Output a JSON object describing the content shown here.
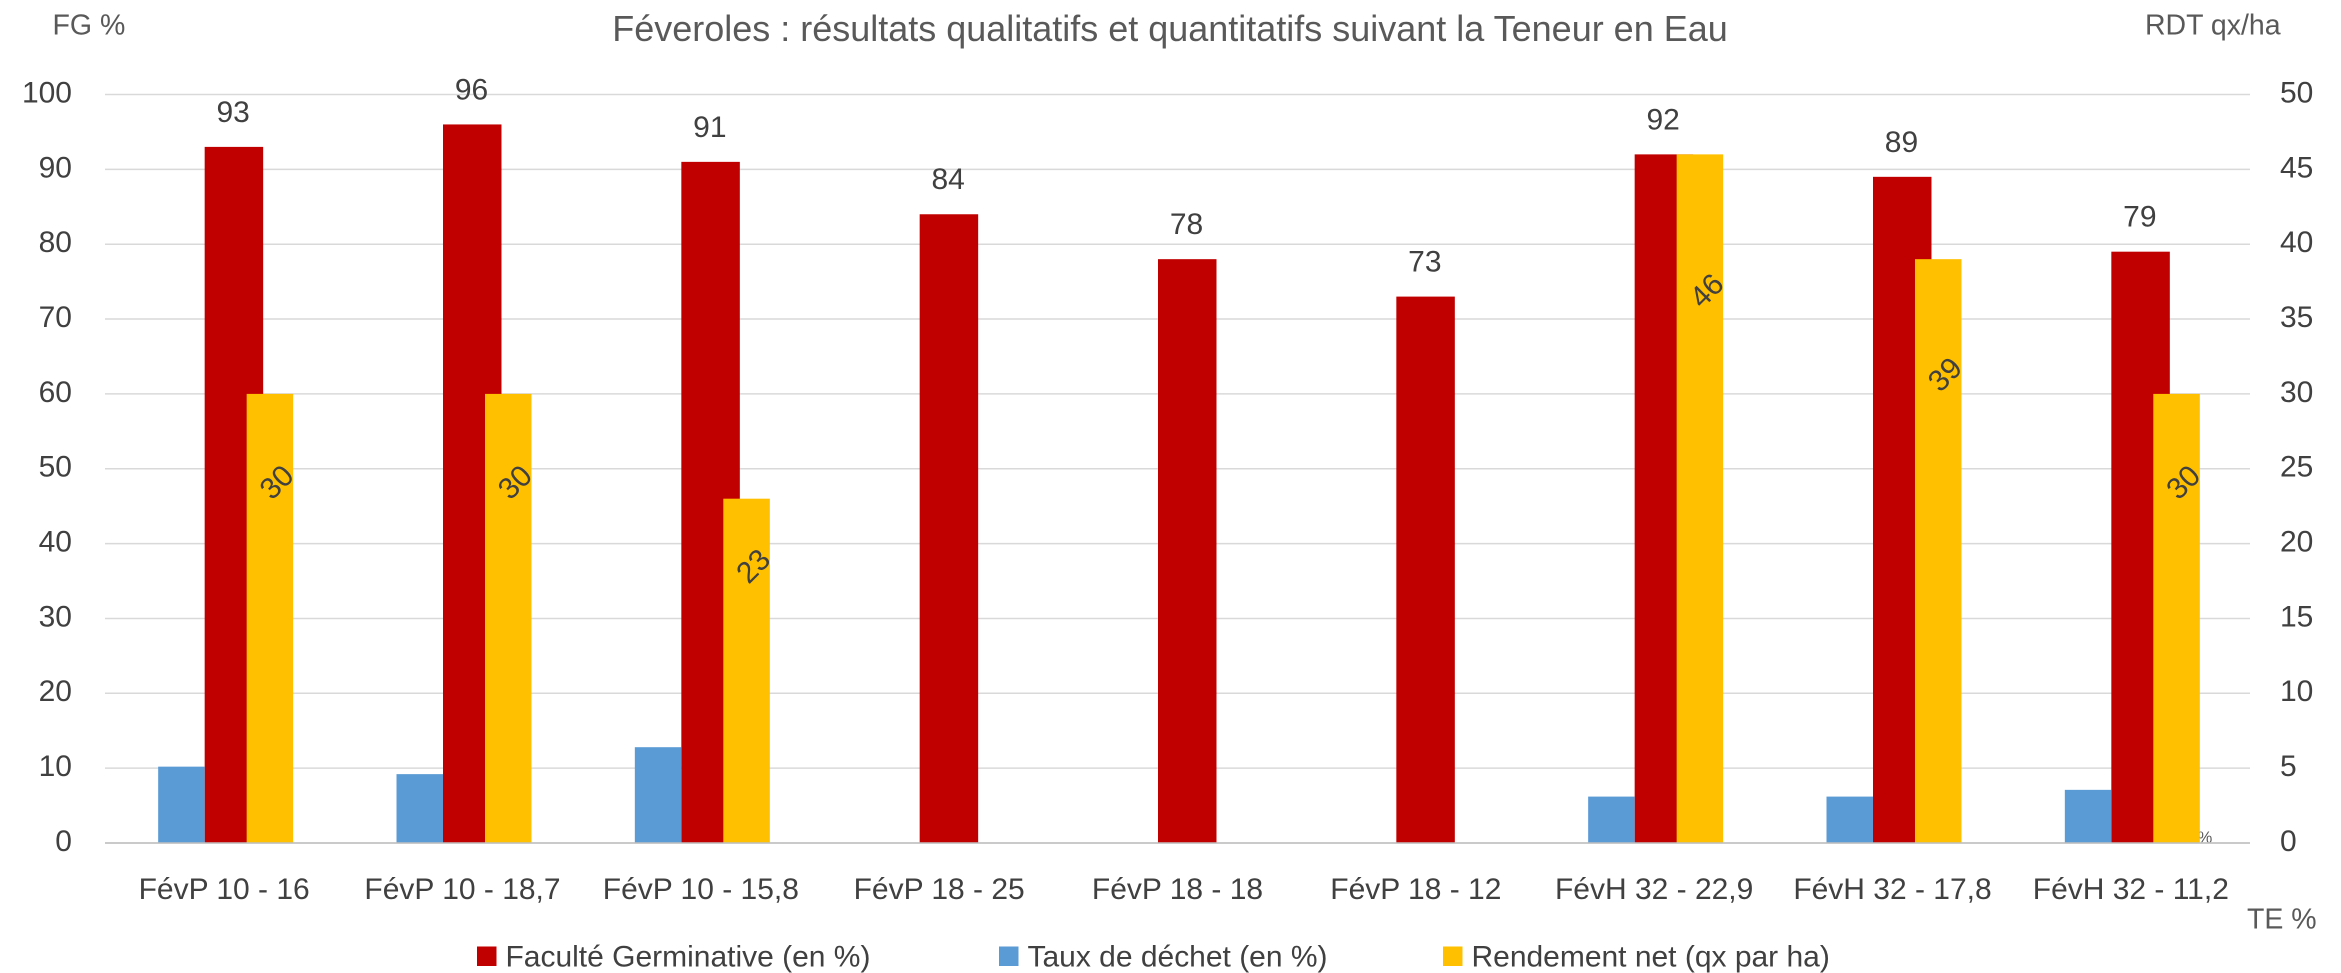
{
  "chart_data": {
    "type": "bar",
    "title": "Féveroles : résultats qualitatifs et quantitatifs suivant la Teneur en Eau",
    "y_label": "FG %",
    "y2_label": "RDT qx/ha",
    "x_label": "TE %",
    "annotation": "TE %",
    "categories": [
      "FévP 10 - 16",
      "FévP 10 - 18,7",
      "FévP 10 - 15,8",
      "FévP 18 - 25",
      "FévP 18 - 18",
      "FévP 18 - 12",
      "FévH 32 - 22,9",
      "FévH 32 - 17,8",
      "FévH 32 - 11,2"
    ],
    "series": [
      {
        "name": "Faculté Germinative (en %)",
        "color": "#c00000",
        "values": [
          93,
          96,
          91,
          84,
          78,
          73,
          92,
          89,
          79
        ]
      },
      {
        "name": "Taux de déchet (en %)",
        "color": "#5b9bd5",
        "values": [
          10.2,
          9.2,
          12.8,
          null,
          null,
          null,
          6.2,
          6.2,
          7.1
        ]
      },
      {
        "name": "Rendement net (qx par ha)",
        "color": "#ffc000",
        "axis": "y2",
        "values": [
          30,
          30,
          23,
          null,
          null,
          null,
          46,
          39,
          30
        ]
      }
    ],
    "ylim": [
      0,
      100
    ],
    "yticks": [
      0,
      10,
      20,
      30,
      40,
      50,
      60,
      70,
      80,
      90,
      100
    ],
    "y2lim": [
      0,
      50
    ],
    "y2ticks": [
      0,
      5,
      10,
      15,
      20,
      25,
      30,
      35,
      40,
      45,
      50
    ],
    "grid": true
  }
}
